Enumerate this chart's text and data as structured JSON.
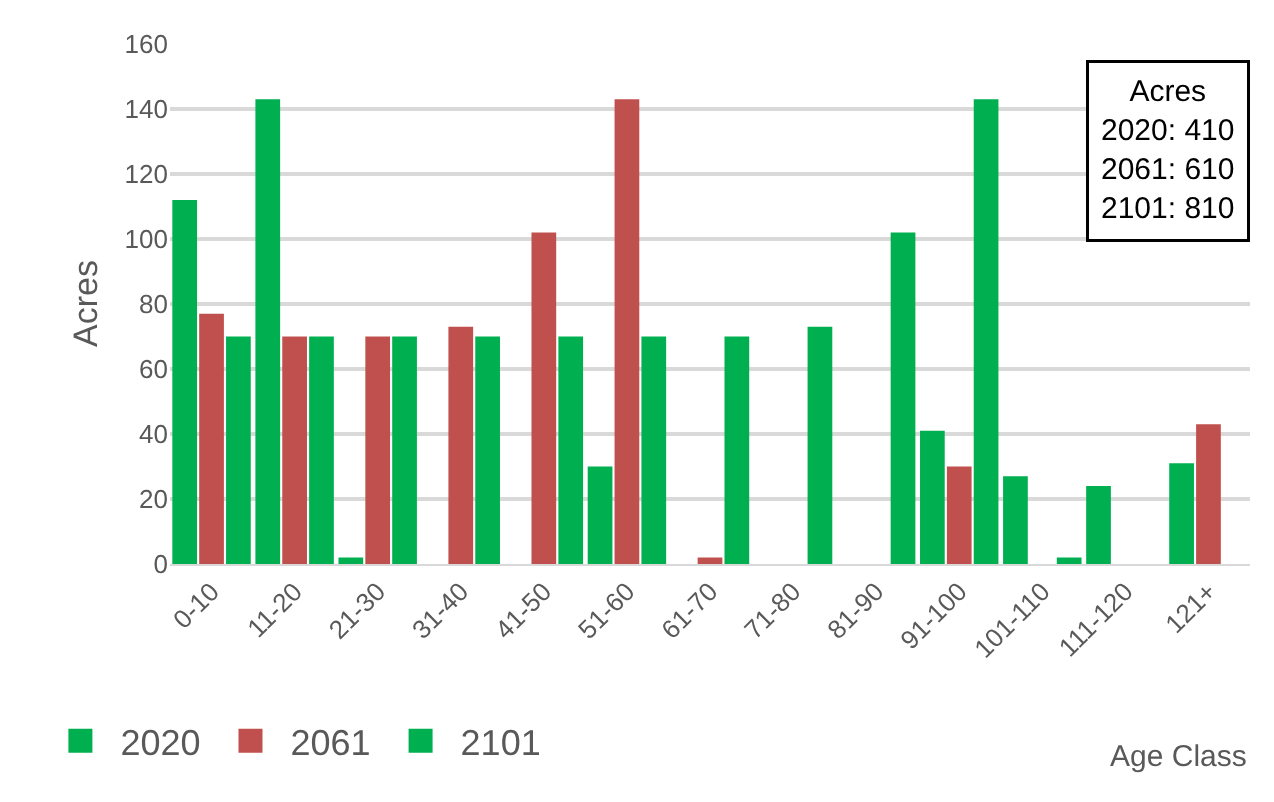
{
  "chart_data": {
    "type": "bar",
    "xlabel": "Age Class",
    "ylabel": "Acres",
    "categories": [
      "0-10",
      "11-20",
      "21-30",
      "31-40",
      "41-50",
      "51-60",
      "61-70",
      "71-80",
      "81-90",
      "91-100",
      "101-110",
      "111-120",
      "121+"
    ],
    "series": [
      {
        "name": "2020",
        "color": "#00b050",
        "values": [
          112,
          143,
          2,
          0,
          0,
          30,
          0,
          0,
          0,
          41,
          27,
          24,
          31
        ]
      },
      {
        "name": "2061",
        "color": "#c0504d",
        "values": [
          77,
          70,
          70,
          73,
          102,
          143,
          2,
          0,
          0,
          30,
          0,
          0,
          43
        ]
      },
      {
        "name": "2101",
        "color": "#00b050",
        "values": [
          70,
          70,
          70,
          70,
          70,
          70,
          70,
          73,
          102,
          143,
          2,
          0,
          0
        ]
      }
    ],
    "ylim": [
      0,
      160
    ],
    "yticks": [
      0,
      20,
      40,
      60,
      80,
      100,
      120,
      140,
      160
    ],
    "grid": "y",
    "legend": "bottom left",
    "annotations": [
      "Acres\n2020: 410\n2061: 610\n2101: 810"
    ]
  }
}
